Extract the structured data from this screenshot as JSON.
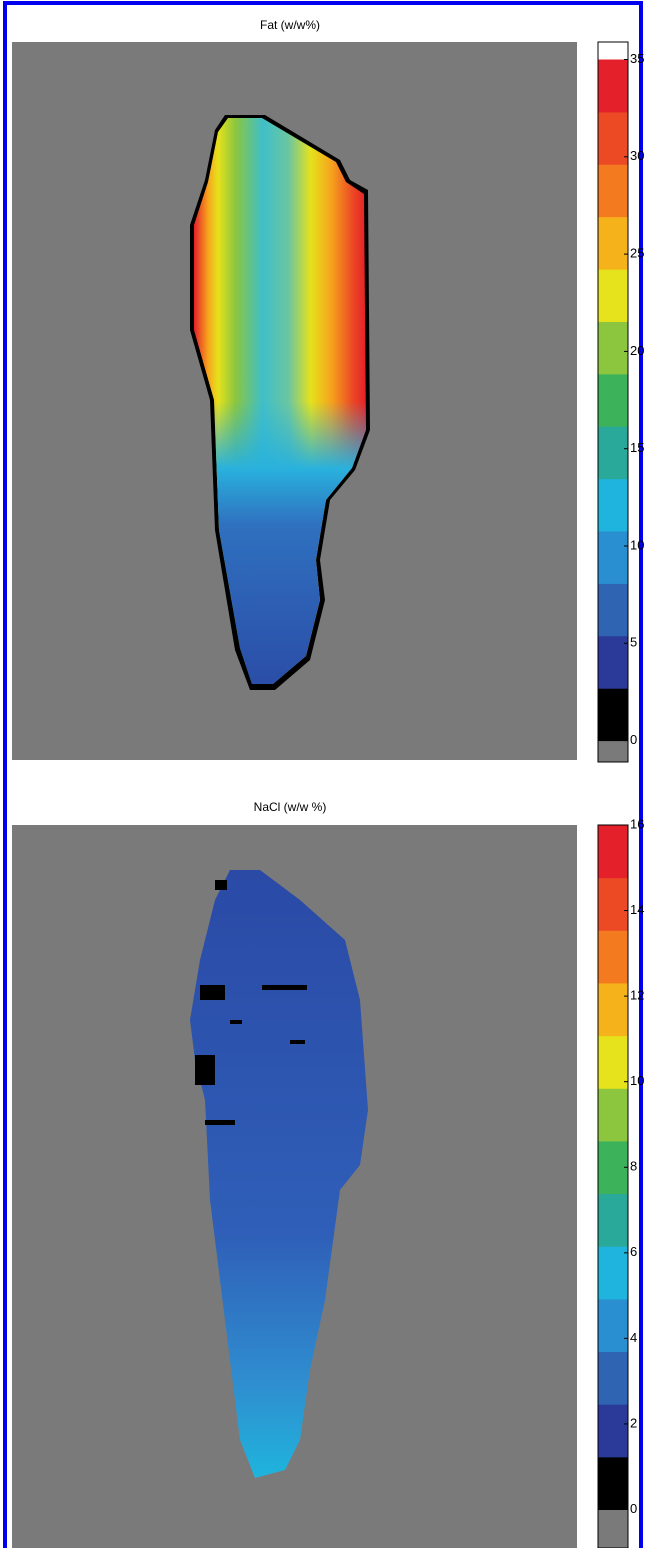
{
  "chart_data": [
    {
      "type": "heatmap",
      "title": "Fat (w/w%)",
      "colorbar_lim": [
        -1.1,
        35.9
      ],
      "colorbar_ticks": [
        0,
        5,
        10,
        15,
        20,
        25,
        30,
        35
      ],
      "colormap": [
        "#000000",
        "#2b3a98",
        "#2f64b3",
        "#2a8fd0",
        "#1fb4dd",
        "#29a99a",
        "#3cb25a",
        "#8cc63f",
        "#e6e21b",
        "#f6b21a",
        "#f47a20",
        "#ec4a24",
        "#e4202a"
      ],
      "under_color": "#7a7a7a",
      "over_color": "#ffffff"
    },
    {
      "type": "heatmap",
      "title": "NaCl (w/w %)",
      "colorbar_lim": [
        -0.9,
        16
      ],
      "colorbar_ticks": [
        0,
        2,
        4,
        6,
        8,
        10,
        12,
        14,
        16
      ],
      "colormap": [
        "#000000",
        "#2b3a98",
        "#2f64b3",
        "#2a8fd0",
        "#1fb4dd",
        "#29a99a",
        "#3cb25a",
        "#8cc63f",
        "#e6e21b",
        "#f6b21a",
        "#f47a20",
        "#ec4a24",
        "#e4202a"
      ],
      "under_color": "#7a7a7a",
      "over_color": "#ffffff"
    }
  ]
}
